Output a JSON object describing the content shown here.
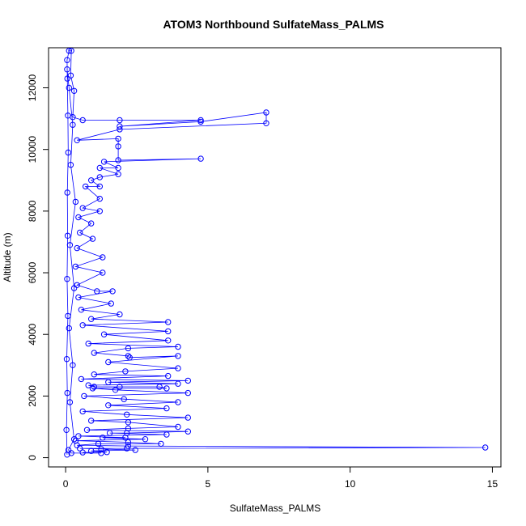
{
  "chart_data": {
    "type": "scatter",
    "title": "ATOM3 Northbound SulfateMass_PALMS",
    "xlabel": "SulfateMass_PALMS",
    "ylabel": "Altitude (m)",
    "xlim": [
      -0.6,
      15.3
    ],
    "ylim": [
      -300,
      13300
    ],
    "x_ticks": [
      0,
      5,
      10,
      15
    ],
    "y_ticks": [
      0,
      2000,
      4000,
      6000,
      8000,
      10000,
      12000
    ],
    "marker": "open-circle",
    "connected": true,
    "grid": false,
    "colors": {
      "series": "#0000ff",
      "axes": "#000000"
    },
    "series": [
      {
        "points": [
          [
            0.05,
            100
          ],
          [
            0.03,
            900
          ],
          [
            0.06,
            2100
          ],
          [
            0.04,
            3200
          ],
          [
            0.08,
            4600
          ],
          [
            0.05,
            5800
          ],
          [
            0.07,
            7200
          ],
          [
            0.06,
            8600
          ],
          [
            0.09,
            9900
          ],
          [
            0.08,
            11100
          ],
          [
            0.06,
            12300
          ],
          [
            0.05,
            12900
          ],
          [
            0.12,
            13200
          ],
          [
            0.2,
            13200
          ],
          [
            0.18,
            12400
          ],
          [
            0.3,
            11900
          ],
          [
            0.25,
            11050
          ],
          [
            0.6,
            10950
          ],
          [
            1.9,
            10950
          ],
          [
            4.75,
            10950
          ],
          [
            1.9,
            10750
          ],
          [
            4.75,
            10900
          ],
          [
            7.05,
            11200
          ],
          [
            7.05,
            10850
          ],
          [
            1.9,
            10650
          ],
          [
            0.4,
            10300
          ],
          [
            1.85,
            10350
          ],
          [
            1.85,
            10100
          ],
          [
            1.85,
            9650
          ],
          [
            4.75,
            9700
          ],
          [
            1.35,
            9600
          ],
          [
            1.85,
            9400
          ],
          [
            1.2,
            9400
          ],
          [
            1.85,
            9200
          ],
          [
            1.2,
            9100
          ],
          [
            0.9,
            9000
          ],
          [
            1.2,
            8800
          ],
          [
            0.7,
            8800
          ],
          [
            1.2,
            8400
          ],
          [
            0.6,
            8100
          ],
          [
            1.2,
            8000
          ],
          [
            0.45,
            7800
          ],
          [
            0.9,
            7600
          ],
          [
            0.5,
            7300
          ],
          [
            0.95,
            7100
          ],
          [
            0.4,
            6800
          ],
          [
            1.3,
            6500
          ],
          [
            0.35,
            6200
          ],
          [
            1.3,
            6000
          ],
          [
            0.4,
            5600
          ],
          [
            1.1,
            5400
          ],
          [
            1.65,
            5400
          ],
          [
            0.45,
            5200
          ],
          [
            1.6,
            5000
          ],
          [
            0.55,
            4800
          ],
          [
            1.9,
            4650
          ],
          [
            0.9,
            4500
          ],
          [
            3.6,
            4400
          ],
          [
            0.6,
            4300
          ],
          [
            3.6,
            4100
          ],
          [
            1.35,
            4000
          ],
          [
            3.6,
            3800
          ],
          [
            0.8,
            3700
          ],
          [
            3.95,
            3600
          ],
          [
            2.2,
            3550
          ],
          [
            1.0,
            3400
          ],
          [
            2.2,
            3300
          ],
          [
            2.25,
            3250
          ],
          [
            3.95,
            3300
          ],
          [
            1.5,
            3100
          ],
          [
            3.95,
            2900
          ],
          [
            2.1,
            2800
          ],
          [
            1.0,
            2700
          ],
          [
            3.6,
            2650
          ],
          [
            0.55,
            2550
          ],
          [
            4.3,
            2500
          ],
          [
            1.5,
            2450
          ],
          [
            3.95,
            2400
          ],
          [
            0.8,
            2350
          ],
          [
            1.0,
            2300
          ],
          [
            1.9,
            2300
          ],
          [
            3.3,
            2300
          ],
          [
            3.55,
            2250
          ],
          [
            0.95,
            2250
          ],
          [
            1.75,
            2200
          ],
          [
            4.3,
            2100
          ],
          [
            0.65,
            2000
          ],
          [
            2.05,
            1900
          ],
          [
            3.95,
            1800
          ],
          [
            1.5,
            1700
          ],
          [
            3.55,
            1600
          ],
          [
            0.6,
            1500
          ],
          [
            2.15,
            1400
          ],
          [
            4.3,
            1300
          ],
          [
            0.9,
            1200
          ],
          [
            2.2,
            1150
          ],
          [
            3.95,
            1000
          ],
          [
            2.2,
            950
          ],
          [
            0.75,
            900
          ],
          [
            4.3,
            850
          ],
          [
            2.15,
            800
          ],
          [
            1.55,
            800
          ],
          [
            3.55,
            750
          ],
          [
            0.45,
            700
          ],
          [
            2.1,
            650
          ],
          [
            1.3,
            650
          ],
          [
            2.8,
            600
          ],
          [
            0.35,
            550
          ],
          [
            2.2,
            500
          ],
          [
            3.35,
            450
          ],
          [
            1.15,
            450
          ],
          [
            0.4,
            400
          ],
          [
            2.2,
            380
          ],
          [
            14.75,
            330
          ],
          [
            2.15,
            300
          ],
          [
            0.5,
            300
          ],
          [
            1.25,
            280
          ],
          [
            2.45,
            250
          ],
          [
            0.9,
            220
          ],
          [
            1.45,
            180
          ],
          [
            0.6,
            170
          ],
          [
            1.25,
            150
          ],
          [
            0.2,
            150
          ],
          [
            0.1,
            250
          ],
          [
            0.3,
            600
          ],
          [
            0.15,
            1800
          ],
          [
            0.25,
            3000
          ],
          [
            0.12,
            4200
          ],
          [
            0.3,
            5500
          ],
          [
            0.15,
            6900
          ],
          [
            0.35,
            8300
          ],
          [
            0.18,
            9500
          ],
          [
            0.25,
            10800
          ],
          [
            0.12,
            12000
          ],
          [
            0.05,
            12600
          ]
        ]
      }
    ]
  }
}
